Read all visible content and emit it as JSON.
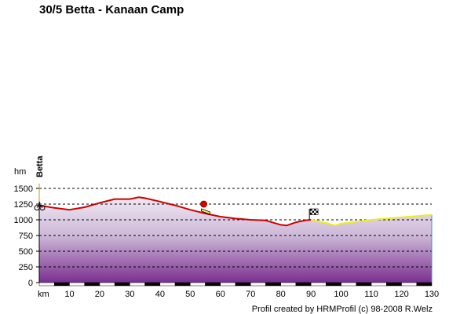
{
  "title": "30/5 Betta - Kanaan Camp",
  "credit": "Profil created by HRMProfil (c) 98-2008 R.Welz",
  "chart_data": {
    "type": "area",
    "title": "30/5 Betta - Kanaan Camp",
    "xlabel": "km",
    "ylabel": "hm",
    "xlim": [
      0,
      130
    ],
    "ylim": [
      0,
      1500
    ],
    "x_ticks": [
      10,
      20,
      30,
      40,
      50,
      60,
      70,
      80,
      90,
      100,
      110,
      120,
      130
    ],
    "y_ticks": [
      0,
      250,
      500,
      750,
      1000,
      1250,
      1500
    ],
    "grid": "horizontal dashed",
    "waypoints": [
      {
        "km": 0,
        "label": "Betta",
        "marker": "bicycle"
      },
      {
        "km": 55,
        "label": "",
        "marker": "red-flag"
      },
      {
        "km": 90,
        "label": "",
        "marker": "checkered-flag"
      }
    ],
    "series": [
      {
        "color": "#cc0000",
        "x": [
          0,
          5,
          10,
          15,
          20,
          25,
          30,
          33,
          35,
          40,
          45,
          50,
          55,
          60,
          65,
          70,
          75,
          80,
          82,
          85,
          88,
          90
        ],
        "y": [
          1230,
          1190,
          1160,
          1200,
          1270,
          1330,
          1330,
          1360,
          1345,
          1290,
          1230,
          1160,
          1100,
          1050,
          1020,
          1000,
          990,
          920,
          910,
          960,
          990,
          1000
        ]
      },
      {
        "color": "#eeee22",
        "x": [
          90,
          95,
          98,
          100,
          105,
          110,
          115,
          120,
          125,
          130
        ],
        "y": [
          1000,
          950,
          910,
          940,
          970,
          1000,
          1020,
          1040,
          1060,
          1080
        ]
      }
    ]
  }
}
